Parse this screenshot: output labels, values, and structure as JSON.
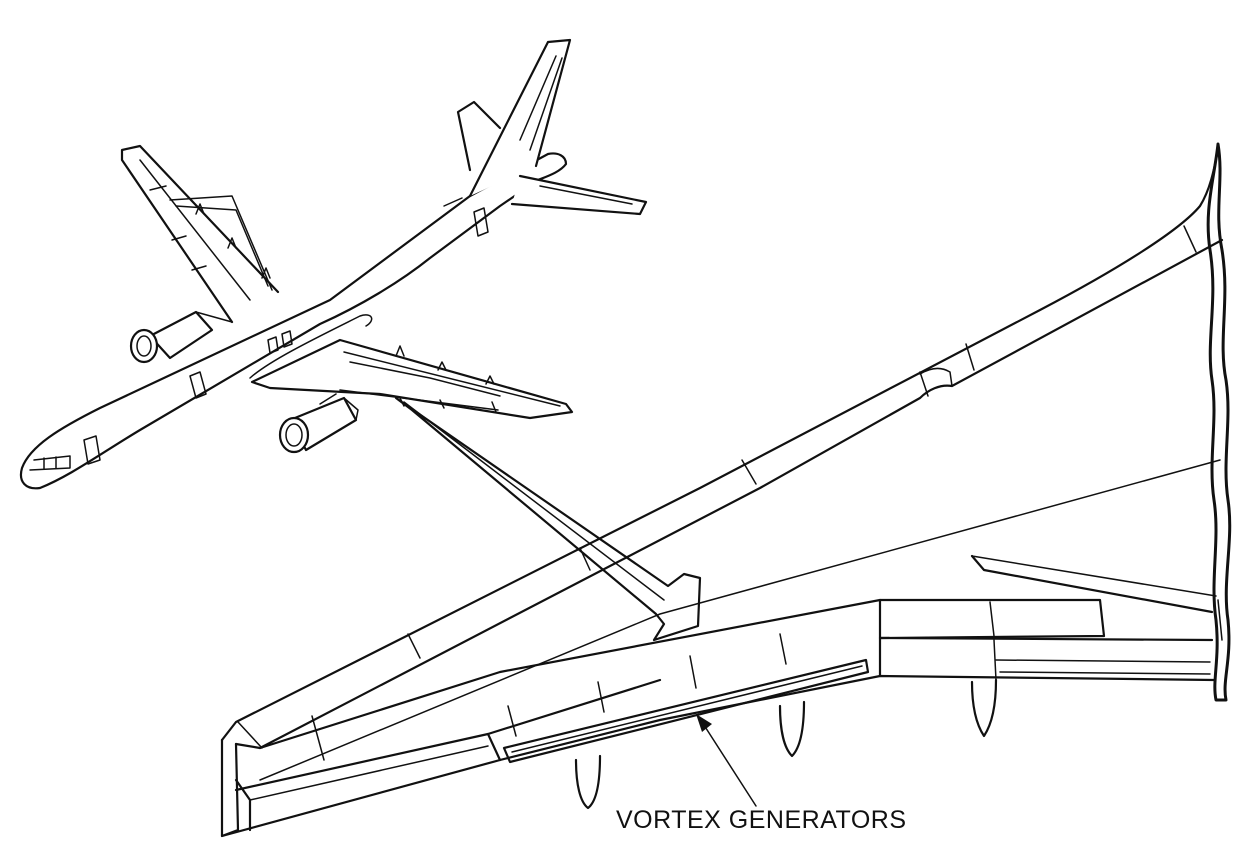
{
  "callout": {
    "label": "VORTEX GENERATORS"
  }
}
